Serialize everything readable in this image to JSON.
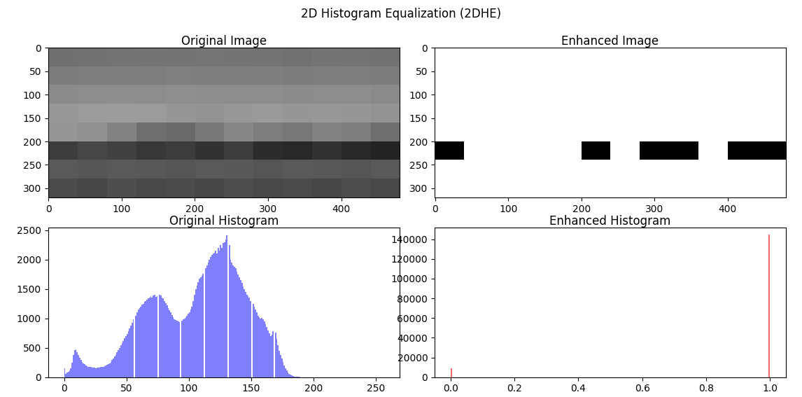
{
  "title": "2D Histogram Equalization (2DHE)",
  "chart_data": [
    {
      "type": "image",
      "title": "Original Image",
      "cells": [
        [
          112,
          114,
          115,
          116,
          115,
          117,
          116,
          115,
          114,
          116,
          115,
          113
        ],
        [
          124,
          125,
          126,
          125,
          127,
          126,
          125,
          126,
          124,
          125,
          126,
          124
        ],
        [
          138,
          140,
          141,
          140,
          142,
          141,
          140,
          141,
          139,
          140,
          141,
          138
        ],
        [
          152,
          155,
          156,
          155,
          150,
          148,
          152,
          154,
          150,
          152,
          150,
          148
        ],
        [
          150,
          145,
          130,
          110,
          105,
          120,
          135,
          125,
          120,
          130,
          125,
          110
        ],
        [
          60,
          70,
          65,
          55,
          60,
          50,
          60,
          45,
          40,
          50,
          40,
          35
        ],
        [
          90,
          85,
          90,
          88,
          85,
          90,
          88,
          85,
          90,
          88,
          85,
          90
        ],
        [
          75,
          70,
          78,
          72,
          75,
          70,
          78,
          72,
          75,
          70,
          78,
          72
        ]
      ],
      "value_range": [
        0,
        255
      ],
      "xlim": [
        -0.5,
        479.5
      ],
      "ylim": [
        319.5,
        -0.5
      ],
      "xticks": [
        0,
        100,
        200,
        300,
        400
      ],
      "yticks": [
        0,
        50,
        100,
        150,
        200,
        250,
        300
      ]
    },
    {
      "type": "image",
      "title": "Enhanced Image",
      "cells": [
        [
          1,
          1,
          1,
          1,
          1,
          1,
          1,
          1,
          1,
          1,
          1,
          1
        ],
        [
          1,
          1,
          1,
          1,
          1,
          1,
          1,
          1,
          1,
          1,
          1,
          1
        ],
        [
          1,
          1,
          1,
          1,
          1,
          1,
          1,
          1,
          1,
          1,
          1,
          1
        ],
        [
          1,
          1,
          1,
          1,
          1,
          1,
          1,
          1,
          1,
          1,
          1,
          1
        ],
        [
          1,
          1,
          1,
          1,
          1,
          1,
          1,
          1,
          1,
          1,
          1,
          1
        ],
        [
          0,
          1,
          1,
          1,
          1,
          0,
          1,
          0,
          0,
          1,
          0,
          0
        ],
        [
          1,
          1,
          1,
          1,
          1,
          1,
          1,
          1,
          1,
          1,
          1,
          1
        ],
        [
          1,
          1,
          1,
          1,
          1,
          1,
          1,
          1,
          1,
          1,
          1,
          1
        ]
      ],
      "value_range": [
        0,
        1
      ],
      "xlim": [
        -0.5,
        479.5
      ],
      "ylim": [
        319.5,
        -0.5
      ],
      "xticks": [
        0,
        100,
        200,
        300,
        400
      ],
      "yticks": [
        0,
        50,
        100,
        150,
        200,
        250,
        300
      ]
    },
    {
      "type": "histogram",
      "title": "Original Histogram",
      "color": "#7f7fff",
      "bins": [
        0,
        1,
        2,
        3,
        4,
        5,
        6,
        7,
        8,
        9,
        10,
        11,
        12,
        13,
        14,
        15,
        16,
        17,
        18,
        19,
        20,
        21,
        22,
        23,
        24,
        25,
        26,
        27,
        28,
        29,
        30,
        31,
        32,
        33,
        34,
        35,
        36,
        37,
        38,
        39,
        40,
        41,
        42,
        43,
        44,
        45,
        46,
        47,
        48,
        49,
        50,
        51,
        52,
        53,
        54,
        55,
        56,
        57,
        58,
        59,
        60,
        61,
        62,
        63,
        64,
        65,
        66,
        67,
        68,
        69,
        70,
        71,
        72,
        73,
        74,
        75,
        76,
        77,
        78,
        79,
        80,
        81,
        82,
        83,
        84,
        85,
        86,
        87,
        88,
        89,
        90,
        91,
        92,
        93,
        94,
        95,
        96,
        97,
        98,
        99,
        100,
        101,
        102,
        103,
        104,
        105,
        106,
        107,
        108,
        109,
        110,
        111,
        112,
        113,
        114,
        115,
        116,
        117,
        118,
        119,
        120,
        121,
        122,
        123,
        124,
        125,
        126,
        127,
        128,
        129,
        130,
        131,
        132,
        133,
        134,
        135,
        136,
        137,
        138,
        139,
        140,
        141,
        142,
        143,
        144,
        145,
        146,
        147,
        148,
        149,
        150,
        151,
        152,
        153,
        154,
        155,
        156,
        157,
        158,
        159,
        160,
        161,
        162,
        163,
        164,
        165,
        166,
        167,
        168,
        169,
        170,
        171,
        172,
        173,
        174,
        175,
        176,
        177,
        178,
        179,
        180,
        181,
        182,
        183,
        184,
        185,
        186,
        187,
        188,
        189,
        190,
        191,
        192,
        193,
        194,
        195,
        196,
        197,
        198,
        199,
        200,
        201,
        202,
        203,
        204,
        205,
        206,
        207,
        208,
        209,
        210,
        211,
        212,
        213,
        214,
        215,
        216,
        217,
        218,
        219,
        220,
        221,
        222,
        223,
        224,
        225,
        226,
        227,
        228,
        229,
        230,
        231,
        232,
        233,
        234,
        235,
        236,
        237,
        238,
        239,
        240,
        241,
        242,
        243,
        244,
        245,
        246,
        247,
        248,
        249,
        250,
        251,
        252,
        253,
        254,
        255,
        256
      ],
      "values": [
        150,
        60,
        80,
        90,
        110,
        150,
        250,
        380,
        460,
        470,
        430,
        380,
        330,
        290,
        260,
        240,
        220,
        200,
        190,
        180,
        175,
        170,
        165,
        160,
        160,
        155,
        160,
        165,
        160,
        170,
        175,
        180,
        190,
        200,
        210,
        220,
        240,
        260,
        290,
        320,
        350,
        380,
        420,
        460,
        500,
        540,
        580,
        620,
        660,
        700,
        740,
        780,
        830,
        880,
        930,
        980,
        0,
        1050,
        1100,
        1150,
        1180,
        1200,
        1230,
        1250,
        1280,
        1300,
        1320,
        1340,
        1360,
        1380,
        1350,
        1390,
        1400,
        1370,
        1380,
        0,
        1400,
        1390,
        1360,
        1340,
        1300,
        1260,
        1220,
        1180,
        1140,
        1100,
        1060,
        1020,
        990,
        970,
        960,
        950,
        940,
        0,
        960,
        980,
        1000,
        1020,
        1050,
        1080,
        1100,
        1150,
        1200,
        1300,
        1400,
        1500,
        1560,
        1620,
        1680,
        1700,
        1720,
        1760,
        0,
        1850,
        1900,
        1950,
        2000,
        2050,
        2080,
        2100,
        2120,
        2150,
        2100,
        2200,
        2150,
        2250,
        2200,
        2280,
        2300,
        2350,
        2420,
        0,
        2250,
        2000,
        1950,
        1900,
        1880,
        1850,
        1800,
        1750,
        1700,
        1650,
        1600,
        1550,
        1500,
        1450,
        1400,
        1380,
        1350,
        1300,
        0,
        1250,
        1200,
        1150,
        1100,
        1050,
        1020,
        1000,
        1010,
        990,
        950,
        900,
        850,
        800,
        750,
        700,
        720,
        780,
        0,
        760,
        650,
        550,
        450,
        380,
        320,
        260,
        200,
        150,
        110,
        80,
        60,
        45,
        30,
        20,
        12,
        8,
        5,
        3,
        2,
        1,
        0,
        0,
        0,
        0,
        0,
        0,
        0,
        0,
        0,
        0,
        0,
        0,
        0,
        0,
        0,
        0,
        0,
        0,
        0,
        0,
        0,
        0,
        0,
        0,
        0,
        0,
        0,
        0,
        0,
        0,
        0,
        0,
        0,
        0,
        0,
        0,
        0,
        0,
        0,
        0,
        0,
        0,
        0,
        0,
        0,
        0,
        0,
        0,
        0,
        0,
        0,
        0,
        0,
        0,
        0,
        0,
        0,
        0,
        0,
        0,
        0,
        0,
        0,
        0,
        0,
        0
      ],
      "xlim": [
        -12.8,
        268.8
      ],
      "ylim": [
        0,
        2550
      ],
      "xticks": [
        0,
        50,
        100,
        150,
        200,
        250
      ],
      "yticks": [
        0,
        500,
        1000,
        1500,
        2000,
        2500
      ]
    },
    {
      "type": "histogram",
      "title": "Enhanced Histogram",
      "color": "#ff6666",
      "bins": [
        0,
        0.0039,
        0.9961,
        1
      ],
      "values": [
        9000,
        0,
        144600
      ],
      "xlim": [
        -0.05,
        1.05
      ],
      "ylim": [
        0,
        152000
      ],
      "xticks": [
        {
          "value": 0,
          "label": "0.0"
        },
        {
          "value": 0.2,
          "label": "0.2"
        },
        {
          "value": 0.4,
          "label": "0.4"
        },
        {
          "value": 0.6,
          "label": "0.6"
        },
        {
          "value": 0.8,
          "label": "0.8"
        },
        {
          "value": 1,
          "label": "1.0"
        }
      ],
      "yticks": [
        0,
        20000,
        40000,
        60000,
        80000,
        100000,
        120000,
        140000
      ]
    }
  ]
}
